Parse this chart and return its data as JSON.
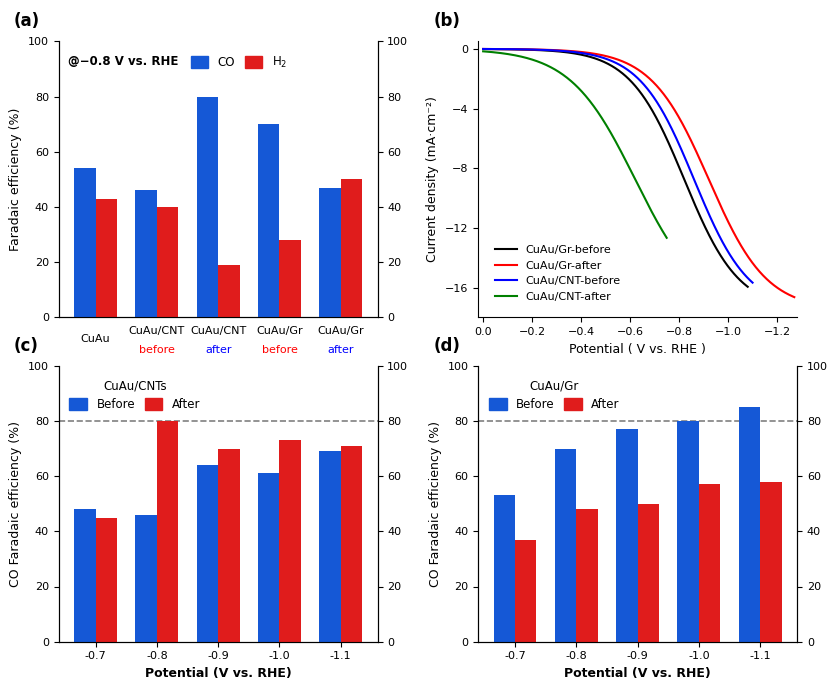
{
  "panel_a": {
    "CO": [
      54,
      46,
      80,
      70,
      47
    ],
    "H2": [
      43,
      40,
      19,
      28,
      50
    ],
    "ylabel": "Faradaic efficiency (%)",
    "ylim": [
      0,
      100
    ],
    "annotation": "@−0.8 V vs. RHE",
    "bar_width": 0.35,
    "blue": "#1558d6",
    "red": "#e01c1c"
  },
  "panel_b": {
    "xlabel": "Potential ( V vs. RHE )",
    "ylabel": "Current density (mA·cm⁻²)",
    "ylim": [
      -18,
      0.5
    ],
    "yticks": [
      0.0,
      -4.0,
      -8.0,
      -12.0,
      -16.0
    ],
    "xticks": [
      0.0,
      -0.2,
      -0.4,
      -0.6,
      -0.8,
      -1.0,
      -1.2
    ],
    "legend": [
      "CuAu/Gr-before",
      "CuAu/Gr-after",
      "CuAu/CNT-before",
      "CuAu/CNT-after"
    ],
    "colors": [
      "black",
      "red",
      "blue",
      "green"
    ]
  },
  "panel_c": {
    "title": "CuAu/CNTs",
    "potentials": [
      "-0.7",
      "-0.8",
      "-0.9",
      "-1.0",
      "-1.1"
    ],
    "before": [
      48,
      46,
      64,
      61,
      69
    ],
    "after": [
      45,
      80,
      70,
      73,
      71
    ],
    "xlabel": "Potential (V vs. RHE)",
    "ylabel": "CO Faradaic efficiency (%)",
    "ylim": [
      0,
      100
    ],
    "dashed_line": 80,
    "blue": "#1558d6",
    "red": "#e01c1c"
  },
  "panel_d": {
    "title": "CuAu/Gr",
    "potentials": [
      "-0.7",
      "-0.8",
      "-0.9",
      "-1.0",
      "-1.1"
    ],
    "before": [
      53,
      70,
      77,
      80,
      85
    ],
    "after": [
      37,
      48,
      50,
      57,
      58
    ],
    "xlabel": "Potential (V vs. RHE)",
    "ylabel": "CO Faradaic efficiency (%)",
    "ylim": [
      0,
      100
    ],
    "dashed_line": 80,
    "blue": "#1558d6",
    "red": "#e01c1c"
  }
}
